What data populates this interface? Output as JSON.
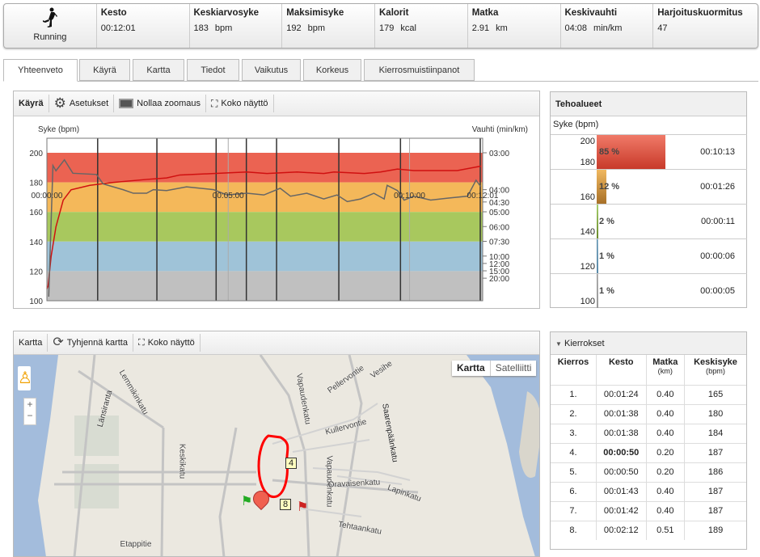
{
  "summary": {
    "sport": "Running",
    "stats": [
      {
        "label": "Kesto",
        "value": "00:12:01",
        "unit": ""
      },
      {
        "label": "Keskiarvosyke",
        "value": "183",
        "unit": "bpm"
      },
      {
        "label": "Maksimisyke",
        "value": "192",
        "unit": "bpm"
      },
      {
        "label": "Kalorit",
        "value": "179",
        "unit": "kcal"
      },
      {
        "label": "Matka",
        "value": "2.91",
        "unit": "km"
      },
      {
        "label": "Keskivauhti",
        "value": "04:08",
        "unit": "min/km"
      },
      {
        "label": "Harjoituskuormitus",
        "value": "47",
        "unit": ""
      }
    ]
  },
  "tabs": [
    "Yhteenveto",
    "Käyrä",
    "Kartta",
    "Tiedot",
    "Vaikutus",
    "Korkeus",
    "Kierrosmuistiinpanot"
  ],
  "curve_panel": {
    "title": "Käyrä",
    "settings": "Asetukset",
    "reset_zoom": "Nollaa zoomaus",
    "fullscreen": "Koko näyttö"
  },
  "chart_data": {
    "type": "line",
    "ylabel": "Syke (bpm)",
    "y2label": "Vauhti (min/km)",
    "ylim": [
      100,
      200
    ],
    "yticks": [
      "100",
      "120",
      "140",
      "160",
      "180",
      "200"
    ],
    "y2ticks": [
      {
        "label": "03:00",
        "pace_s": 180
      },
      {
        "label": "04:00",
        "pace_s": 240
      },
      {
        "label": "04:30",
        "pace_s": 270
      },
      {
        "label": "05:00",
        "pace_s": 300
      },
      {
        "label": "06:00",
        "pace_s": 360
      },
      {
        "label": "07:30",
        "pace_s": 450
      },
      {
        "label": "10:00",
        "pace_s": 600
      },
      {
        "label": "12:00",
        "pace_s": 720
      },
      {
        "label": "15:00",
        "pace_s": 900
      },
      {
        "label": "20:00",
        "pace_s": 1200
      }
    ],
    "xlim_s": [
      0,
      721
    ],
    "xticks": [
      {
        "label": "00:00:00",
        "t": 0
      },
      {
        "label": "00:05:00",
        "t": 300
      },
      {
        "label": "00:10:00",
        "t": 600
      },
      {
        "label": "00:12:01",
        "t": 721
      }
    ],
    "zones": [
      {
        "from": 180,
        "to": 200,
        "color": "#eb6352"
      },
      {
        "from": 160,
        "to": 180,
        "color": "#f4b85a"
      },
      {
        "from": 140,
        "to": 160,
        "color": "#a8c85e"
      },
      {
        "from": 120,
        "to": 140,
        "color": "#9fc3d8"
      },
      {
        "from": 100,
        "to": 120,
        "color": "#c0c0c0"
      }
    ],
    "laps_t": [
      84,
      182,
      280,
      330,
      380,
      483,
      585,
      717
    ],
    "minor_t": [
      300,
      600
    ],
    "series": [
      {
        "name": "Syke",
        "color": "#d01010",
        "points": [
          [
            0,
            108
          ],
          [
            2,
            110
          ],
          [
            7,
            130
          ],
          [
            15,
            150
          ],
          [
            27,
            168
          ],
          [
            40,
            175
          ],
          [
            71,
            178
          ],
          [
            110,
            180
          ],
          [
            165,
            182
          ],
          [
            198,
            183
          ],
          [
            220,
            185
          ],
          [
            276,
            186
          ],
          [
            331,
            187
          ],
          [
            364,
            186
          ],
          [
            414,
            187
          ],
          [
            458,
            186
          ],
          [
            475,
            187
          ],
          [
            525,
            186
          ],
          [
            552,
            187
          ],
          [
            580,
            189
          ],
          [
            607,
            188
          ],
          [
            679,
            188
          ],
          [
            718,
            191
          ]
        ]
      },
      {
        "name": "Vauhti",
        "color": "#666666",
        "points": [
          [
            3,
            7200
          ],
          [
            10,
            197
          ],
          [
            15,
            205
          ],
          [
            29,
            189
          ],
          [
            43,
            209
          ],
          [
            82,
            211
          ],
          [
            93,
            228
          ],
          [
            126,
            240
          ],
          [
            143,
            248
          ],
          [
            165,
            248
          ],
          [
            176,
            240
          ],
          [
            198,
            242
          ],
          [
            231,
            234
          ],
          [
            276,
            240
          ],
          [
            298,
            252
          ],
          [
            331,
            248
          ],
          [
            359,
            252
          ],
          [
            386,
            237
          ],
          [
            403,
            255
          ],
          [
            430,
            248
          ],
          [
            458,
            262
          ],
          [
            480,
            252
          ],
          [
            497,
            269
          ],
          [
            519,
            262
          ],
          [
            541,
            248
          ],
          [
            558,
            262
          ],
          [
            563,
            231
          ],
          [
            580,
            242
          ],
          [
            591,
            265
          ],
          [
            607,
            255
          ],
          [
            635,
            265
          ],
          [
            663,
            260
          ],
          [
            696,
            255
          ],
          [
            710,
            221
          ],
          [
            718,
            234
          ]
        ]
      }
    ]
  },
  "zones_panel": {
    "title": "Tehoalueet",
    "axis": "Syke (bpm)",
    "rows": [
      {
        "hi": "200",
        "lo": "180",
        "pct": "85 %",
        "fraction": 0.85,
        "time": "00:10:13",
        "color": "#c83a2a",
        "color2": "#f07a68"
      },
      {
        "hi": "",
        "lo": "160",
        "pct": "12 %",
        "fraction": 0.12,
        "time": "00:01:26",
        "color": "#a87028",
        "color2": "#f0b860"
      },
      {
        "hi": "",
        "lo": "140",
        "pct": "2 %",
        "fraction": 0.02,
        "time": "00:00:11",
        "color": "#6a8a2a",
        "color2": "#a8d070"
      },
      {
        "hi": "",
        "lo": "120",
        "pct": "1 %",
        "fraction": 0.01,
        "time": "00:00:06",
        "color": "#5a8aa8",
        "color2": "#9fc3d8"
      },
      {
        "hi": "",
        "lo": "100",
        "pct": "1 %",
        "fraction": 0.01,
        "time": "00:00:05",
        "color": "#999999",
        "color2": "#c0c0c0"
      }
    ]
  },
  "map_panel": {
    "title": "Kartta",
    "clear": "Tyhjennä kartta",
    "fullscreen": "Koko näyttö",
    "type_map": "Kartta",
    "type_sat": "Satelliitti",
    "zoom_in": "+",
    "zoom_out": "−",
    "streets": [
      "Länsiranta",
      "Lemmikinkatu",
      "Keskikatu",
      "Etappitie",
      "Vapaudenkatu",
      "Vapaudenkatu",
      "Pellervontie",
      "Vesihe",
      "Kullervontie",
      "Saarenpäänkatu",
      "Oravaisenkatu",
      "Tehtaankatu",
      "Lapinkatu"
    ],
    "lap_markers": [
      "4",
      "8"
    ]
  },
  "laps": {
    "title": "Kierrokset",
    "headers": [
      {
        "l": "Kierros",
        "u": ""
      },
      {
        "l": "Kesto",
        "u": ""
      },
      {
        "l": "Matka",
        "u": "(km)"
      },
      {
        "l": "Keskisyke",
        "u": "(bpm)"
      }
    ],
    "rows": [
      [
        "1.",
        "00:01:24",
        "0.40",
        "165"
      ],
      [
        "2.",
        "00:01:38",
        "0.40",
        "180"
      ],
      [
        "3.",
        "00:01:38",
        "0.40",
        "184"
      ],
      [
        "4.",
        "00:00:50",
        "0.20",
        "187"
      ],
      [
        "5.",
        "00:00:50",
        "0.20",
        "186"
      ],
      [
        "6.",
        "00:01:43",
        "0.40",
        "187"
      ],
      [
        "7.",
        "00:01:42",
        "0.40",
        "187"
      ],
      [
        "8.",
        "00:02:12",
        "0.51",
        "189"
      ]
    ],
    "bold_row": 3
  }
}
